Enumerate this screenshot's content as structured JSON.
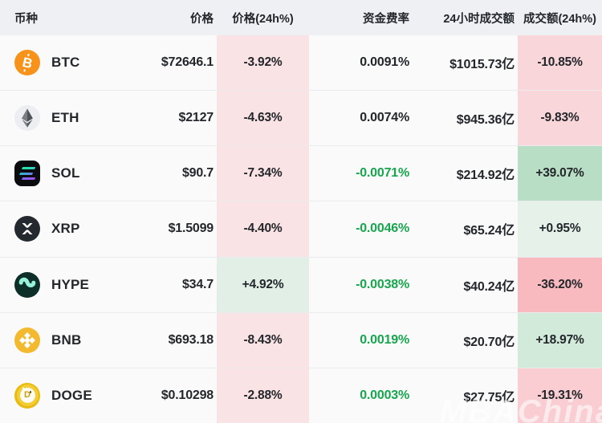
{
  "table": {
    "headers": {
      "coin": "币种",
      "price": "价格",
      "price_change_24h": "价格(24h%)",
      "funding_rate": "资金费率",
      "volume_24h": "24小时成交额",
      "volume_change_24h": "成交额(24h%)"
    },
    "rows": [
      {
        "symbol": "BTC",
        "icon": "btc-icon",
        "price": "$72646.1",
        "price_change": "-3.92%",
        "price_change_bg": "#f9e3e5",
        "funding": "0.0091%",
        "funding_style": "dark",
        "volume": "$1015.73亿",
        "volume_change": "-10.85%",
        "volume_change_bg": "#f8d6d9"
      },
      {
        "symbol": "ETH",
        "icon": "eth-icon",
        "price": "$2127",
        "price_change": "-4.63%",
        "price_change_bg": "#f9e3e5",
        "funding": "0.0074%",
        "funding_style": "dark",
        "volume": "$945.36亿",
        "volume_change": "-9.83%",
        "volume_change_bg": "#f8d6d9"
      },
      {
        "symbol": "SOL",
        "icon": "sol-icon",
        "price": "$90.7",
        "price_change": "-7.34%",
        "price_change_bg": "#f9e3e5",
        "funding": "-0.0071%",
        "funding_style": "green",
        "volume": "$214.92亿",
        "volume_change": "+39.07%",
        "volume_change_bg": "#b8dfc6"
      },
      {
        "symbol": "XRP",
        "icon": "xrp-icon",
        "price": "$1.5099",
        "price_change": "-4.40%",
        "price_change_bg": "#f9e3e5",
        "funding": "-0.0046%",
        "funding_style": "green",
        "volume": "$65.24亿",
        "volume_change": "+0.95%",
        "volume_change_bg": "#e5f1e9"
      },
      {
        "symbol": "HYPE",
        "icon": "hype-icon",
        "price": "$34.7",
        "price_change": "+4.92%",
        "price_change_bg": "#e2efe6",
        "funding": "-0.0038%",
        "funding_style": "green",
        "volume": "$40.24亿",
        "volume_change": "-36.20%",
        "volume_change_bg": "#f8babf"
      },
      {
        "symbol": "BNB",
        "icon": "bnb-icon",
        "price": "$693.18",
        "price_change": "-8.43%",
        "price_change_bg": "#f9e3e5",
        "funding": "0.0019%",
        "funding_style": "green",
        "volume": "$20.70亿",
        "volume_change": "+18.97%",
        "volume_change_bg": "#d2ead9"
      },
      {
        "symbol": "DOGE",
        "icon": "doge-icon",
        "price": "$0.10298",
        "price_change": "-2.88%",
        "price_change_bg": "#f9e3e5",
        "funding": "0.0003%",
        "funding_style": "green",
        "volume": "$27.75亿",
        "volume_change": "-19.31%",
        "volume_change_bg": "#f9cdd1"
      }
    ]
  },
  "watermark": "MBAChina",
  "colors": {
    "header_bg": "#eef0f3",
    "row_bg": "#fafafa",
    "green_text": "#17a64e",
    "dark_text": "#23262b",
    "loss_cell_light": "#f9e3e5",
    "gain_cell_light": "#e2efe6"
  }
}
